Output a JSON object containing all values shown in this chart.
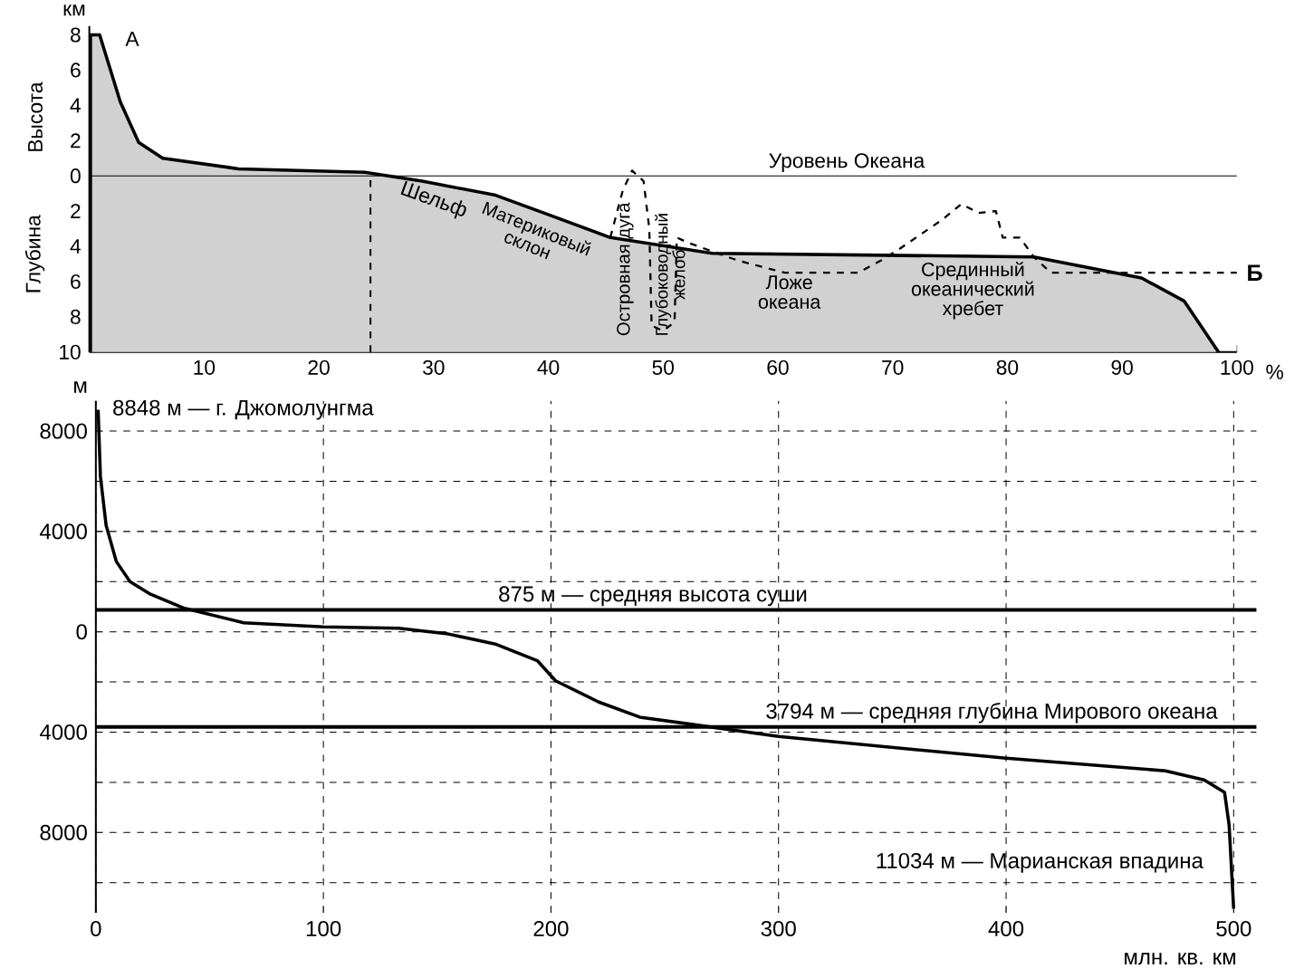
{
  "chart_data": [
    {
      "type": "area",
      "ylabel": "Высота",
      "xlim": [
        0,
        100
      ],
      "ylim": [
        -10,
        8.5
      ],
      "xticks": [
        10,
        20,
        30,
        40,
        50,
        60,
        70,
        80,
        90,
        100
      ],
      "yticks": [
        {
          "value": -10,
          "label": "10"
        },
        {
          "value": -8,
          "label": "8"
        },
        {
          "value": -6,
          "label": "6"
        },
        {
          "value": -4,
          "label": "4"
        },
        {
          "value": -2,
          "label": "2"
        },
        0,
        2,
        4,
        6,
        8
      ],
      "series": [
        {
          "type": "area",
          "color": "#000000",
          "x": [
            0.1,
            0.1,
            0.9,
            2.7,
            4.3,
            6.4,
            13,
            24,
            29,
            35.4,
            39.6,
            45.4,
            54.3,
            82.3,
            91.7,
            95.4,
            98.4
          ],
          "values": [
            -10,
            8,
            8,
            4.2,
            1.9,
            1,
            0.4,
            0.2,
            -0.3,
            -1.1,
            -2.1,
            -3.5,
            -4.4,
            -4.6,
            -5.8,
            -7.1,
            -10
          ]
        },
        {
          "type": "line",
          "line_style": "dashed",
          "color": "#000000",
          "x": [
            45.4,
            46.5,
            47.3,
            48.3,
            48.8,
            49,
            50,
            51,
            51.2,
            52.2,
            56.5,
            60.6,
            67,
            69,
            70.7,
            74.3,
            76,
            77.5,
            79,
            79.6,
            81.1,
            82.3,
            83.8,
            100
          ],
          "values": [
            -3.5,
            -0.8,
            0.3,
            -0.3,
            -3,
            -8.5,
            -8.8,
            -8.3,
            -3.5,
            -3.8,
            -4.8,
            -5.5,
            -5.5,
            -4.8,
            -4.1,
            -2.5,
            -1.6,
            -2.1,
            -2,
            -3.5,
            -3.5,
            -4.6,
            -5.5,
            -5.5
          ]
        }
      ],
      "ref_lines": [
        {
          "axis": "y",
          "value": 0,
          "label": "Уровень Океана"
        },
        {
          "axis": "x",
          "value": 24.5,
          "line_style": "dashed"
        }
      ],
      "annotations": [
        "км",
        "Глубина",
        "%",
        {
          "text": "А",
          "x": 0.9,
          "y": 8
        },
        {
          "text": "Б",
          "x": 100,
          "y": -5.5
        },
        "Шельф",
        "Материковый склон",
        "Островная дуга",
        "Глубоководный желоб",
        "Ложе океана",
        "Срединный океанический хребет"
      ]
    },
    {
      "type": "line",
      "xlabel": "млн. кв. км",
      "ylabel": "м",
      "xlim": [
        0,
        510
      ],
      "ylim": [
        -11200,
        9200
      ],
      "xticks": [
        0,
        100,
        200,
        300,
        400,
        500
      ],
      "yticks": [
        {
          "value": -10000,
          "label": null
        },
        {
          "value": -8000,
          "label": "8000"
        },
        {
          "value": -6000,
          "label": null
        },
        {
          "value": -4000,
          "label": "4000"
        },
        {
          "value": -2000,
          "label": null
        },
        0,
        {
          "value": 2000,
          "label": null
        },
        4000,
        {
          "value": 6000,
          "label": null
        },
        8000
      ],
      "grid": true,
      "series": [
        {
          "color": "#000000",
          "x": [
            1,
            2,
            4.5,
            9,
            15,
            24,
            39,
            65,
            100,
            133,
            154,
            176,
            194,
            202,
            221,
            239,
            300,
            400,
            470,
            487,
            496,
            498,
            500
          ],
          "values": [
            8848,
            6200,
            4250,
            2800,
            2000,
            1500,
            935,
            360,
            200,
            140,
            -70,
            -500,
            -1150,
            -1950,
            -2800,
            -3400,
            -4170,
            -5040,
            -5540,
            -5900,
            -6400,
            -7700,
            -11034
          ]
        }
      ],
      "ref_lines": [
        {
          "axis": "y",
          "value": 875,
          "label": "875 м — средняя высота суши"
        },
        {
          "axis": "y",
          "value": -3794,
          "label": "3794 м — средняя глубина Мирового океана"
        }
      ],
      "annotations": [
        {
          "text": "8848 м — г. Джомолунгма",
          "x": 0,
          "y": 8848
        },
        {
          "text": "11034 м — Марианская впадина",
          "x": 500,
          "y": -11034
        }
      ]
    }
  ]
}
